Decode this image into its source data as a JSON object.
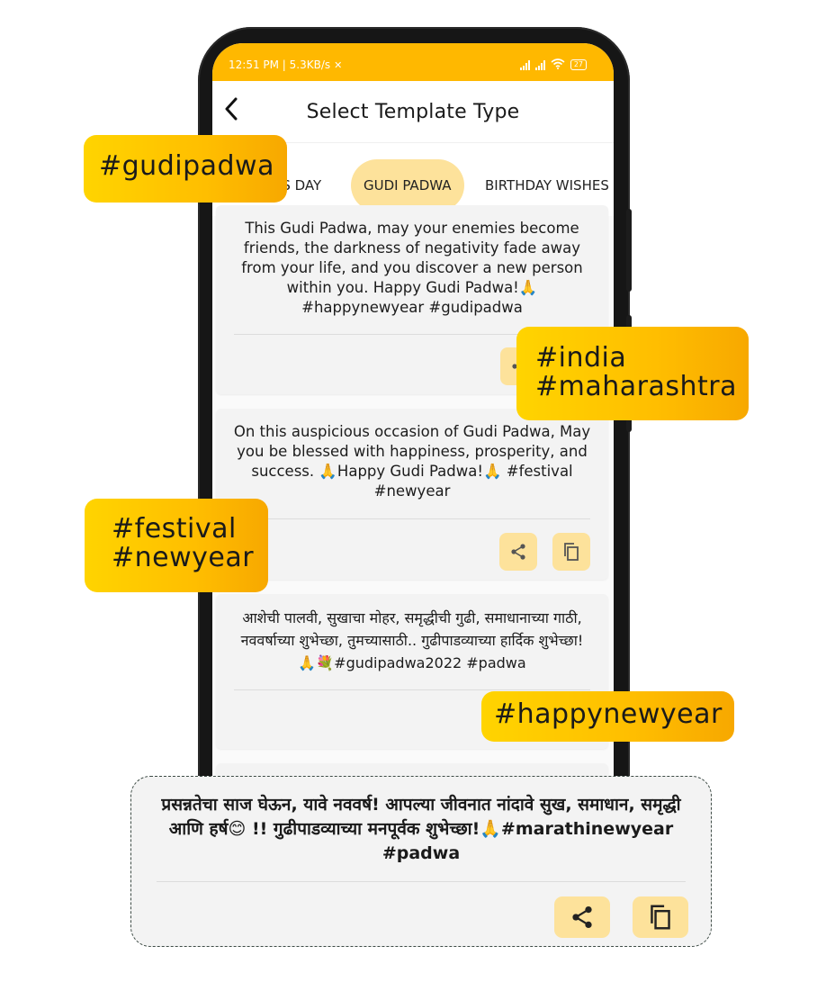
{
  "status_bar": {
    "time_info": "12:51 PM | 5.3KB/s",
    "battery": "27"
  },
  "app_bar": {
    "title": "Select Template Type",
    "back_icon": "back-arrow-icon"
  },
  "tabs": [
    {
      "label": "N'S DAY",
      "active": false
    },
    {
      "label": "GUDI PADWA",
      "active": true
    },
    {
      "label": "BIRTHDAY WISHES",
      "active": false
    }
  ],
  "cards": [
    {
      "text": "This Gudi Padwa, may your enemies become friends, the darkness of negativity fade away from your life, and you discover a new person within you. Happy Gudi Padwa!🙏 #happynewyear #gudipadwa"
    },
    {
      "text": "On this auspicious occasion of Gudi Padwa, May you be blessed with happiness, prosperity, and success. 🙏Happy Gudi Padwa!🙏 #festival #newyear"
    },
    {
      "text": "आशेची पालवी, सुखाचा मोहर, समृद्धीची गुढी, समाधानाच्या गाठी, नववर्षाच्या शुभेच्छा, तुमच्यासाठी.. गुढीपाडव्याच्या हार्दिक शुभेच्छा!🙏💐#gudipadwa2022 #padwa"
    }
  ],
  "highlight_card": {
    "text": "प्रसन्नतेचा साज घेऊन, यावे नववर्ष!  आपल्या जीवनात नांदावे सुख, समाधान, समृद्धी आणि हर्ष😊 !! गुढीपाडव्याच्या मनपूर्वक शुभेच्छा!🙏#marathinewyear #padwa"
  },
  "tags": {
    "gudipadwa": "#gudipadwa",
    "india": "#india",
    "maharashtra": "#maharashtra",
    "festival": "#festival",
    "newyear": "#newyear",
    "happynewyear": "#happynewyear"
  },
  "icons": {
    "share": "share-icon",
    "copy": "copy-icon"
  },
  "colors": {
    "accent": "#ffb800",
    "button_bg": "#fde29b",
    "tag_gradient_start": "#ffd400",
    "tag_gradient_end": "#f7a800"
  }
}
